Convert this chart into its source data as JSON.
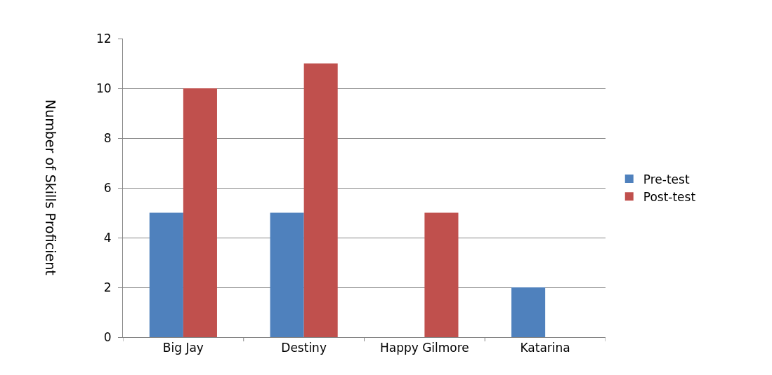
{
  "chart_data": {
    "type": "bar",
    "ylabel": "Number of Skills Proficient",
    "categories": [
      "Big Jay",
      "Destiny",
      "Happy Gilmore",
      "Katarina"
    ],
    "series": [
      {
        "name": "Pre-test",
        "color": "#4f81bd",
        "values": [
          5,
          5,
          0,
          2
        ]
      },
      {
        "name": "Post-test",
        "color": "#c0504d",
        "values": [
          10,
          11,
          5,
          0
        ]
      }
    ],
    "ylim": [
      0,
      12
    ],
    "yticks": [
      0,
      2,
      4,
      6,
      8,
      10,
      12
    ],
    "grid": "y",
    "legend": "right"
  }
}
